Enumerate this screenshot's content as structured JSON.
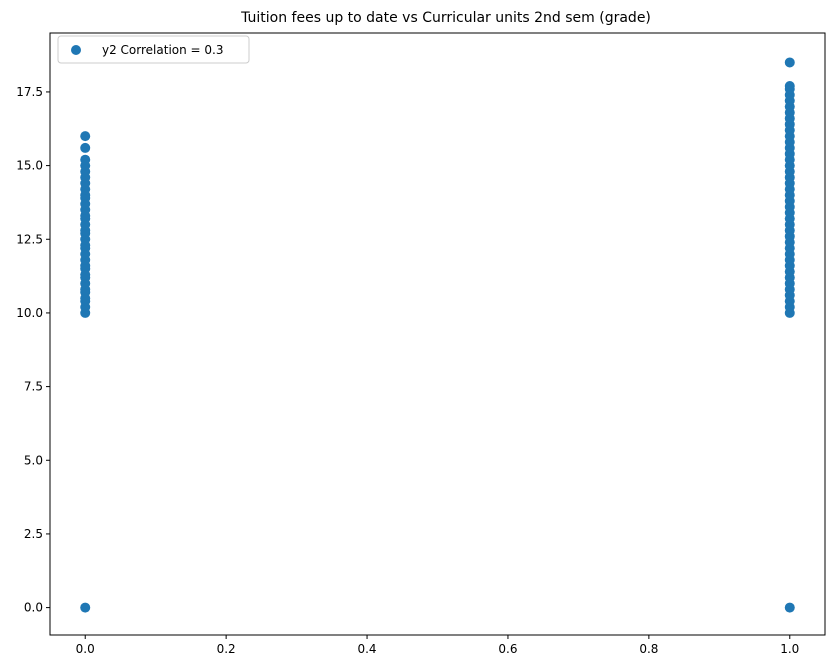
{
  "chart_data": {
    "type": "scatter",
    "title": "Tuition fees up to date vs Curricular units 2nd sem (grade)",
    "xlabel": "",
    "ylabel": "",
    "xlim": [
      -0.05,
      1.05
    ],
    "ylim": [
      -0.93,
      19.5
    ],
    "x_ticks": [
      "0.0",
      "0.2",
      "0.4",
      "0.6",
      "0.8",
      "1.0"
    ],
    "x_tick_values": [
      0.0,
      0.2,
      0.4,
      0.6,
      0.8,
      1.0
    ],
    "y_ticks": [
      "0.0",
      "2.5",
      "5.0",
      "7.5",
      "10.0",
      "12.5",
      "15.0",
      "17.5"
    ],
    "y_tick_values": [
      0.0,
      2.5,
      5.0,
      7.5,
      10.0,
      12.5,
      15.0,
      17.5
    ],
    "grid": false,
    "legend_position": "top-left",
    "series": [
      {
        "name": "y2 Correlation = 0.3",
        "color": "#1f77b4",
        "points": [
          [
            0,
            0.0
          ],
          [
            0,
            10.0
          ],
          [
            0,
            10.2
          ],
          [
            0,
            10.4
          ],
          [
            0,
            10.5
          ],
          [
            0,
            10.7
          ],
          [
            0,
            10.8
          ],
          [
            0,
            11.0
          ],
          [
            0,
            11.2
          ],
          [
            0,
            11.3
          ],
          [
            0,
            11.5
          ],
          [
            0,
            11.6
          ],
          [
            0,
            11.8
          ],
          [
            0,
            12.0
          ],
          [
            0,
            12.2
          ],
          [
            0,
            12.3
          ],
          [
            0,
            12.5
          ],
          [
            0,
            12.7
          ],
          [
            0,
            12.8
          ],
          [
            0,
            13.0
          ],
          [
            0,
            13.2
          ],
          [
            0,
            13.3
          ],
          [
            0,
            13.5
          ],
          [
            0,
            13.7
          ],
          [
            0,
            13.9
          ],
          [
            0,
            14.0
          ],
          [
            0,
            14.2
          ],
          [
            0,
            14.4
          ],
          [
            0,
            14.6
          ],
          [
            0,
            14.8
          ],
          [
            0,
            15.0
          ],
          [
            0,
            15.2
          ],
          [
            0,
            15.6
          ],
          [
            0,
            16.0
          ],
          [
            1,
            0.0
          ],
          [
            1,
            10.0
          ],
          [
            1,
            10.2
          ],
          [
            1,
            10.4
          ],
          [
            1,
            10.6
          ],
          [
            1,
            10.8
          ],
          [
            1,
            11.0
          ],
          [
            1,
            11.2
          ],
          [
            1,
            11.4
          ],
          [
            1,
            11.6
          ],
          [
            1,
            11.8
          ],
          [
            1,
            12.0
          ],
          [
            1,
            12.2
          ],
          [
            1,
            12.4
          ],
          [
            1,
            12.6
          ],
          [
            1,
            12.8
          ],
          [
            1,
            13.0
          ],
          [
            1,
            13.2
          ],
          [
            1,
            13.4
          ],
          [
            1,
            13.6
          ],
          [
            1,
            13.8
          ],
          [
            1,
            14.0
          ],
          [
            1,
            14.2
          ],
          [
            1,
            14.4
          ],
          [
            1,
            14.6
          ],
          [
            1,
            14.8
          ],
          [
            1,
            15.0
          ],
          [
            1,
            15.2
          ],
          [
            1,
            15.4
          ],
          [
            1,
            15.6
          ],
          [
            1,
            15.8
          ],
          [
            1,
            16.0
          ],
          [
            1,
            16.2
          ],
          [
            1,
            16.4
          ],
          [
            1,
            16.6
          ],
          [
            1,
            16.8
          ],
          [
            1,
            17.0
          ],
          [
            1,
            17.2
          ],
          [
            1,
            17.4
          ],
          [
            1,
            17.6
          ],
          [
            1,
            17.7
          ],
          [
            1,
            18.5
          ]
        ]
      }
    ]
  }
}
